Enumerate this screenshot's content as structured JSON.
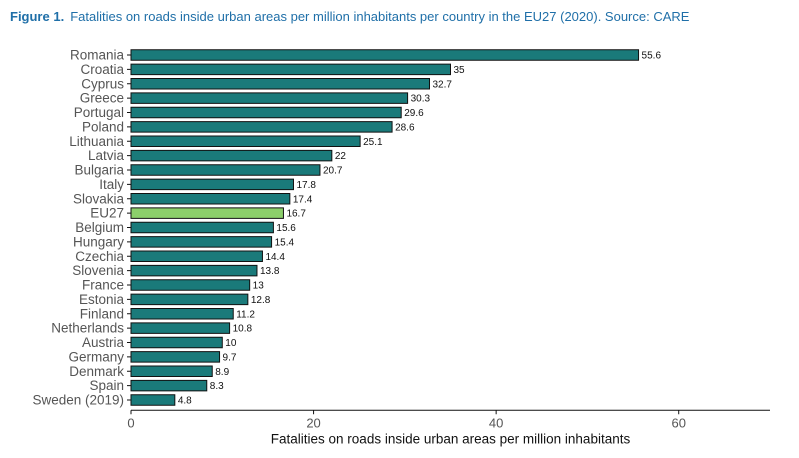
{
  "caption": {
    "label": "Figure 1.",
    "text": "Fatalities on roads inside urban areas per million inhabitants per country in the EU27 (2020). Source: CARE"
  },
  "colors": {
    "caption": "#1f6fa8",
    "bar": "#1a7a7a",
    "bar_highlight": "#8ccf6b",
    "bar_stroke": "#111111",
    "axis": "#111111",
    "tick_label": "#555555"
  },
  "chart_data": {
    "type": "bar",
    "orientation": "horizontal",
    "categories": [
      "Romania",
      "Croatia",
      "Cyprus",
      "Greece",
      "Portugal",
      "Poland",
      "Lithuania",
      "Latvia",
      "Bulgaria",
      "Italy",
      "Slovakia",
      "EU27",
      "Belgium",
      "Hungary",
      "Czechia",
      "Slovenia",
      "France",
      "Estonia",
      "Finland",
      "Netherlands",
      "Austria",
      "Germany",
      "Denmark",
      "Spain",
      "Sweden (2019)"
    ],
    "values": [
      55.6,
      35,
      32.7,
      30.3,
      29.6,
      28.6,
      25.1,
      22,
      20.7,
      17.8,
      17.4,
      16.7,
      15.6,
      15.4,
      14.4,
      13.8,
      13,
      12.8,
      11.2,
      10.8,
      10,
      9.7,
      8.9,
      8.3,
      4.8
    ],
    "data_labels": [
      "55.6",
      "35",
      "32.7",
      "30.3",
      "29.6",
      "28.6",
      "25.1",
      "22",
      "20.7",
      "17.8",
      "17.4",
      "16.7",
      "15.6",
      "15.4",
      "14.4",
      "13.8",
      "13",
      "12.8",
      "11.2",
      "10.8",
      "10",
      "9.7",
      "8.9",
      "8.3",
      "4.8"
    ],
    "highlight": "EU27",
    "xlabel": "Fatalities on roads inside urban areas per million inhabitants",
    "ylabel": "",
    "xlim": [
      0,
      70
    ],
    "xticks": [
      0,
      20,
      40,
      60
    ],
    "xtick_labels": [
      "0",
      "20",
      "40",
      "60"
    ],
    "grid": false,
    "legend": "none"
  }
}
